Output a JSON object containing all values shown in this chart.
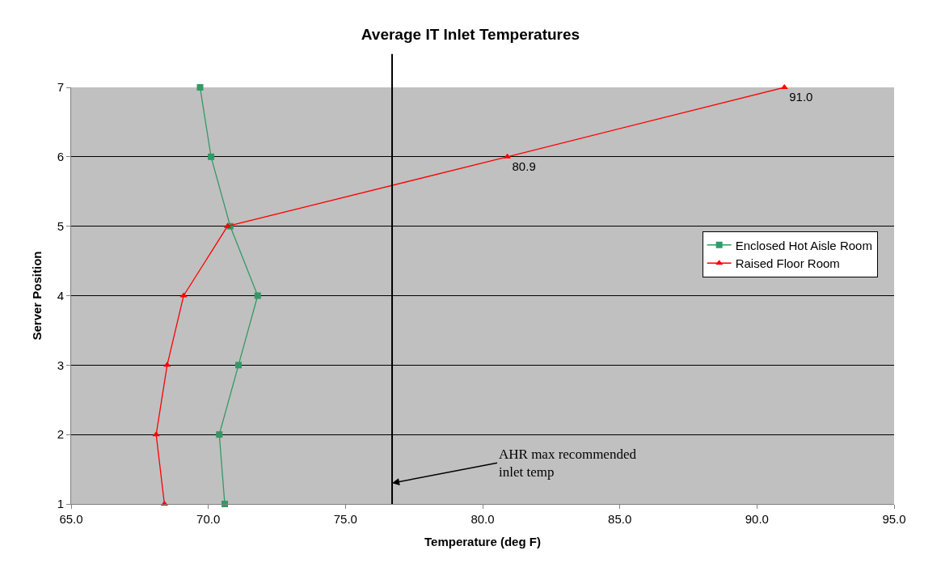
{
  "chart_data": {
    "type": "line",
    "orientation": "horizontal",
    "title": "Average IT Inlet Temperatures",
    "xlabel": "Temperature (deg F)",
    "ylabel": "Server Position",
    "categories": [
      "7",
      "6",
      "5",
      "4",
      "3",
      "2",
      "1"
    ],
    "series": [
      {
        "name": "Enclosed Hot Aisle Room",
        "color": "#339966",
        "marker": "square",
        "values": [
          69.7,
          70.1,
          70.8,
          71.8,
          71.1,
          70.4,
          70.6
        ]
      },
      {
        "name": "Raised Floor Room",
        "color": "#ff0000",
        "marker": "triangle",
        "values": [
          91.0,
          80.9,
          70.7,
          69.1,
          68.5,
          68.1,
          68.4
        ],
        "value_labels": [
          "91.0",
          "80.9",
          null,
          null,
          null,
          null,
          null
        ]
      }
    ],
    "xlim": [
      65,
      95
    ],
    "xticks": [
      {
        "value": 65,
        "label": "65.0"
      },
      {
        "value": 70,
        "label": "70.0"
      },
      {
        "value": 75,
        "label": "75.0"
      },
      {
        "value": 80,
        "label": "80.0"
      },
      {
        "value": 85,
        "label": "85.0"
      },
      {
        "value": 90,
        "label": "90.0"
      },
      {
        "value": 95,
        "label": "95.0"
      }
    ],
    "ref_lines": [
      {
        "axis": "x",
        "value": 76.7,
        "color": "#000000",
        "label": "AHR max recommended\ninlet temp"
      }
    ],
    "grid": "y",
    "legend": "right"
  }
}
